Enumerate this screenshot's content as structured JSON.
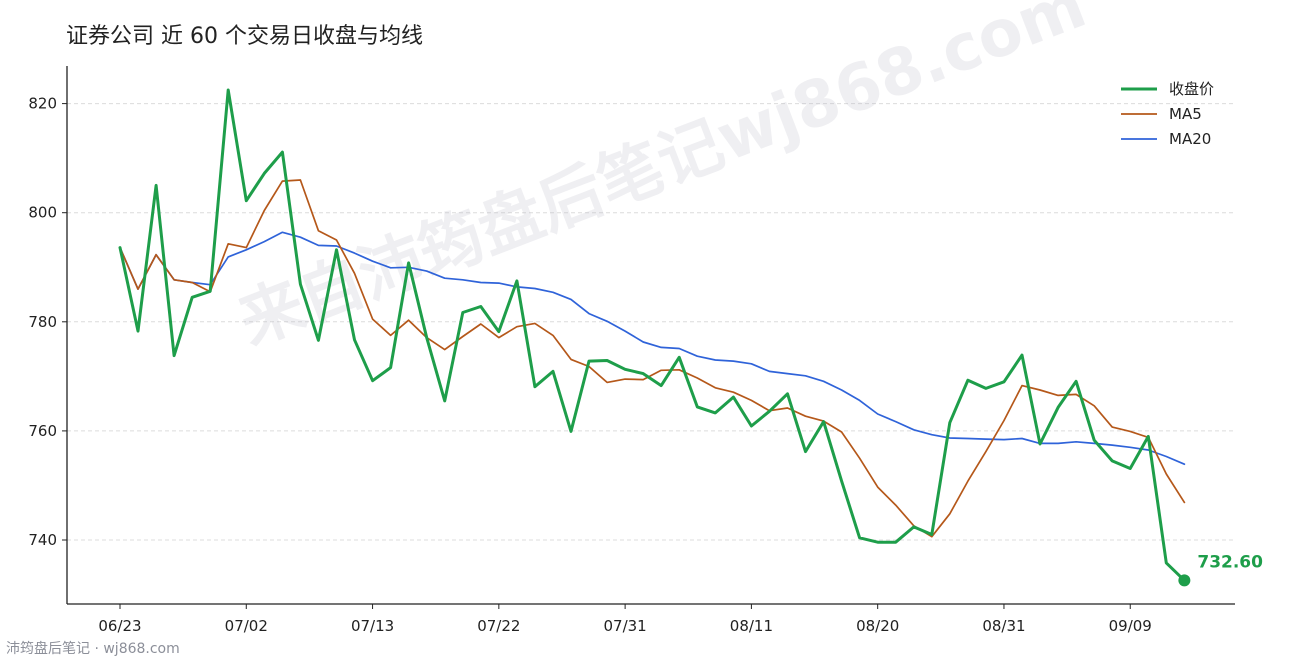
{
  "colors": {
    "close": "#1e9e4a",
    "ma5": "#b5581a",
    "ma20": "#2f63d9",
    "axis": "#222222",
    "grid": "#dcdcdc"
  },
  "chart_data": {
    "type": "line",
    "title": "证券公司 近 60 个交易日收盘与均线",
    "xlabel": "",
    "ylabel": "",
    "x_tick_labels": [
      "06/23",
      "07/02",
      "07/13",
      "07/22",
      "07/31",
      "08/11",
      "08/20",
      "08/31",
      "09/09"
    ],
    "x_tick_indices": [
      0,
      7,
      14,
      21,
      28,
      35,
      42,
      49,
      56
    ],
    "y_ticks": [
      740,
      760,
      780,
      800,
      820
    ],
    "ylim": [
      729,
      826
    ],
    "grid": true,
    "legend_position": "top-right",
    "last_value_label": "732.60",
    "series": [
      {
        "name": "收盘价",
        "role": "close",
        "values": [
          793.6,
          778.3,
          805.0,
          773.8,
          784.5,
          785.6,
          822.5,
          802.2,
          807.2,
          811.1,
          786.9,
          776.6,
          793.2,
          776.7,
          769.2,
          771.6,
          790.8,
          777.1,
          765.5,
          781.7,
          782.8,
          778.2,
          787.5,
          768.1,
          770.9,
          759.9,
          772.8,
          772.9,
          771.3,
          770.5,
          768.3,
          773.5,
          764.4,
          763.3,
          766.2,
          760.9,
          763.6,
          766.8,
          756.2,
          761.7,
          750.8,
          740.4,
          739.6,
          739.6,
          742.4,
          741.0,
          761.5,
          769.3,
          767.8,
          769.0,
          773.9,
          757.6,
          764.3,
          769.1,
          758.3,
          754.5,
          753.1,
          759.0,
          735.8,
          732.6
        ]
      },
      {
        "name": "MA5",
        "role": "ma5",
        "values": [
          793.6,
          786.0,
          792.3,
          787.7,
          787.2,
          785.5,
          794.3,
          793.6,
          800.4,
          805.8,
          806.0,
          796.7,
          795.0,
          788.9,
          780.5,
          777.5,
          780.3,
          777.1,
          774.9,
          777.3,
          779.6,
          777.1,
          779.1,
          779.7,
          777.5,
          773.1,
          771.8,
          768.9,
          769.5,
          769.4,
          771.1,
          771.2,
          769.7,
          767.9,
          767.1,
          765.6,
          763.7,
          764.2,
          762.7,
          761.8,
          759.8,
          755.0,
          749.7,
          746.4,
          742.6,
          740.6,
          744.8,
          750.8,
          756.2,
          761.9,
          768.3,
          767.5,
          766.5,
          766.7,
          764.6,
          760.7,
          759.9,
          758.8,
          752.1,
          746.9
        ]
      },
      {
        "name": "MA20",
        "role": "ma20",
        "values": [
          793.6,
          786.0,
          792.3,
          787.7,
          787.2,
          786.8,
          791.9,
          793.2,
          794.7,
          796.4,
          795.5,
          794.0,
          793.9,
          792.6,
          791.1,
          789.9,
          790.0,
          789.3,
          788.0,
          787.7,
          787.2,
          787.1,
          786.4,
          786.1,
          785.4,
          784.1,
          781.5,
          780.1,
          778.3,
          776.3,
          775.3,
          775.1,
          773.7,
          773.0,
          772.8,
          772.3,
          770.9,
          770.5,
          770.1,
          769.1,
          767.5,
          765.6,
          763.1,
          761.7,
          760.2,
          759.3,
          758.7,
          758.6,
          758.5,
          758.4,
          758.6,
          757.7,
          757.7,
          758.0,
          757.7,
          757.4,
          757.0,
          756.5,
          755.3,
          753.9
        ]
      }
    ]
  },
  "watermark": {
    "text": "来自沛筠盘后笔记wj868.com"
  },
  "footer": {
    "source": "沛筠盘后笔记 · wj868.com"
  }
}
